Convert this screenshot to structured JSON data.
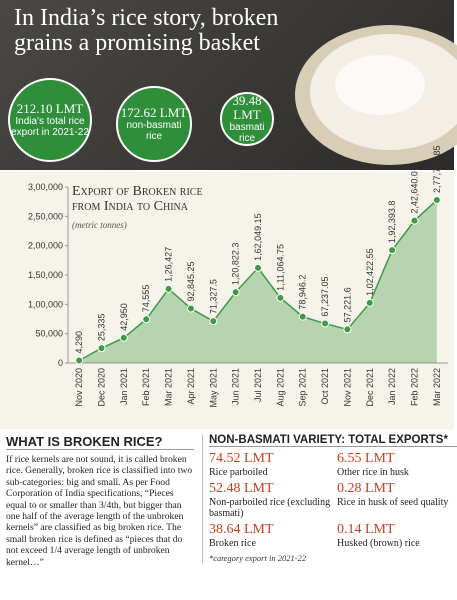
{
  "header": {
    "title": "In India’s rice story, broken grains a promising basket"
  },
  "stats": [
    {
      "value": "212.10 LMT",
      "label": "India's total rice export in 2021-22"
    },
    {
      "value": "172.62 LMT",
      "label": "non-basmati rice"
    },
    {
      "value": "39.48 LMT",
      "label": "basmati rice"
    }
  ],
  "chart_data": {
    "type": "area",
    "title": "Export of Broken rice from India to China",
    "subtitle": "(metric tonnes)",
    "categories": [
      "Nov 2020",
      "Dec 2020",
      "Jan 2021",
      "Feb 2021",
      "Mar 2021",
      "Apr 2021",
      "May 2021",
      "Jun 2021",
      "Jul 2021",
      "Aug 2021",
      "Sep 2021",
      "Oct 2021",
      "Nov 2021",
      "Dec 2021",
      "Jan 2022",
      "Feb 2022",
      "Mar 2022"
    ],
    "values": [
      4290,
      25335,
      42950,
      74555,
      126427,
      92845.25,
      71327.5,
      120822.3,
      162049.15,
      111064.75,
      78946.2,
      67237.05,
      57221.6,
      102422.55,
      192393.8,
      242640,
      277799.85
    ],
    "value_labels": [
      "4,290",
      "25,335",
      "42,950",
      "74,555",
      "1,26,427",
      "92,845.25",
      "71,327.5",
      "1,20,822.3",
      "1,62,049.15",
      "1,11,064.75",
      "78,946.2",
      "67,237.05",
      "57,221.6",
      "1,02,422.55",
      "1,92,393.8",
      "2,42,640.0",
      "2,77,799.85"
    ],
    "color": "#3f9a45",
    "ylim": [
      0,
      300000
    ],
    "yticks": [
      0,
      {
        "value": 50000,
        "label": "50,000"
      },
      {
        "value": 100000,
        "label": "1,00,000"
      },
      {
        "value": 150000,
        "label": "1,50,000"
      },
      {
        "value": 200000,
        "label": "2,00,000"
      },
      {
        "value": 250000,
        "label": "2,50,000"
      },
      {
        "value": 300000,
        "label": "3,00,000"
      }
    ],
    "grid": false
  },
  "info": {
    "title": "WHAT IS BROKEN RICE?",
    "text": "If rice kernels are not sound, it is called broken rice. Generally, broken rice is classified into two sub-categories: big and small. As per Food Corporation of India specifications, “Pieces equal to or smaller than 3/4th, but bigger than one half of the average length of the unbroken kernels” are classified as big broken rice. The small broken rice is defined as “pieces that do not exceed 1/4 average length of unbroken kernel…”"
  },
  "exports": {
    "title": "NON-BASMATI VARIETY: TOTAL EXPORTS*",
    "items": [
      {
        "value": "74.52 LMT",
        "label": "Rice parboiled"
      },
      {
        "value": "6.55 LMT",
        "label": "Other rice in husk"
      },
      {
        "value": "52.48 LMT",
        "label": "Non-parboiled rice (excluding basmati)"
      },
      {
        "value": "0.28 LMT",
        "label": "Rice in husk of seed quality"
      },
      {
        "value": "38.64 LMT",
        "label": "Broken rice"
      },
      {
        "value": "0.14 LMT",
        "label": "Husked (brown) rice"
      }
    ],
    "note": "*category export in 2021-22"
  }
}
